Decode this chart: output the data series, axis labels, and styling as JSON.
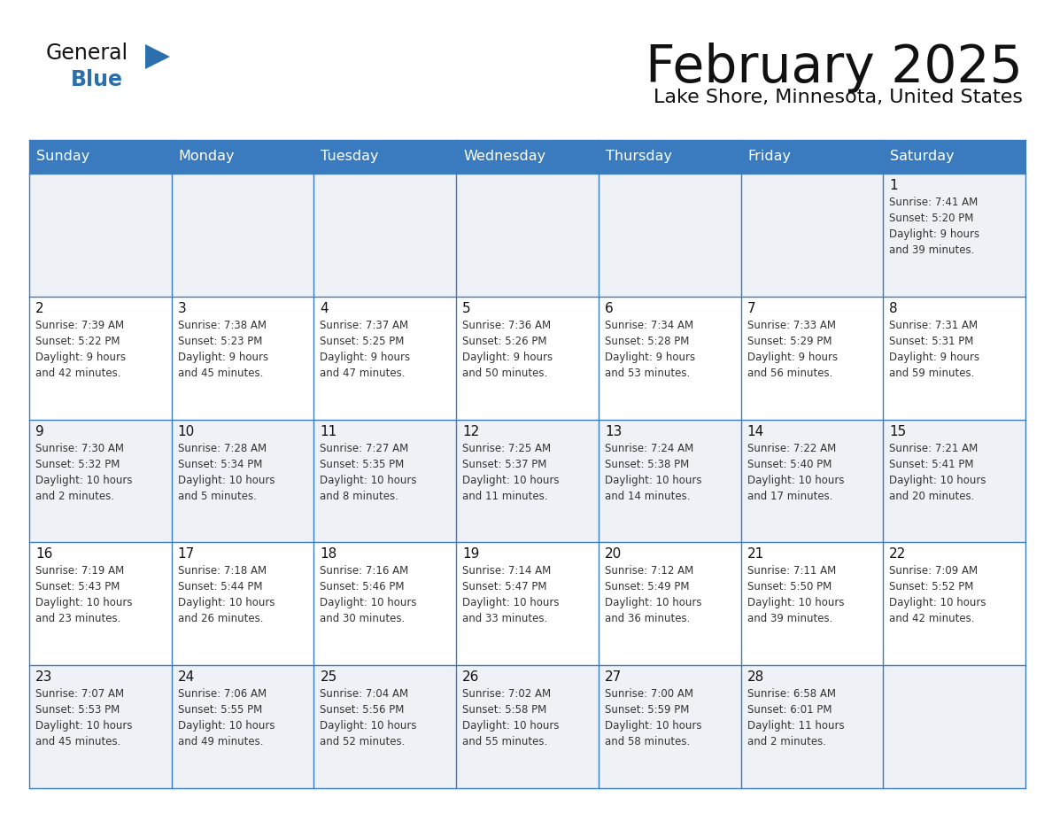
{
  "title": "February 2025",
  "subtitle": "Lake Shore, Minnesota, United States",
  "header_bg": "#3a7bbf",
  "header_text_color": "#ffffff",
  "cell_bg_alt": "#eef2f7",
  "cell_bg_white": "#ffffff",
  "border_color": "#3a7bbf",
  "day_headers": [
    "Sunday",
    "Monday",
    "Tuesday",
    "Wednesday",
    "Thursday",
    "Friday",
    "Saturday"
  ],
  "title_color": "#111111",
  "subtitle_color": "#111111",
  "cell_text_color": "#333333",
  "day_number_color": "#111111",
  "logo_text_color": "#111111",
  "logo_blue_color": "#2b6fad",
  "logo_triangle_color": "#2b6fad",
  "weeks": [
    [
      null,
      null,
      null,
      null,
      null,
      null,
      {
        "day": "1",
        "sunrise": "7:41 AM",
        "sunset": "5:20 PM",
        "daylight": "9 hours",
        "daylight2": "and 39 minutes."
      }
    ],
    [
      {
        "day": "2",
        "sunrise": "7:39 AM",
        "sunset": "5:22 PM",
        "daylight": "9 hours",
        "daylight2": "and 42 minutes."
      },
      {
        "day": "3",
        "sunrise": "7:38 AM",
        "sunset": "5:23 PM",
        "daylight": "9 hours",
        "daylight2": "and 45 minutes."
      },
      {
        "day": "4",
        "sunrise": "7:37 AM",
        "sunset": "5:25 PM",
        "daylight": "9 hours",
        "daylight2": "and 47 minutes."
      },
      {
        "day": "5",
        "sunrise": "7:36 AM",
        "sunset": "5:26 PM",
        "daylight": "9 hours",
        "daylight2": "and 50 minutes."
      },
      {
        "day": "6",
        "sunrise": "7:34 AM",
        "sunset": "5:28 PM",
        "daylight": "9 hours",
        "daylight2": "and 53 minutes."
      },
      {
        "day": "7",
        "sunrise": "7:33 AM",
        "sunset": "5:29 PM",
        "daylight": "9 hours",
        "daylight2": "and 56 minutes."
      },
      {
        "day": "8",
        "sunrise": "7:31 AM",
        "sunset": "5:31 PM",
        "daylight": "9 hours",
        "daylight2": "and 59 minutes."
      }
    ],
    [
      {
        "day": "9",
        "sunrise": "7:30 AM",
        "sunset": "5:32 PM",
        "daylight": "10 hours",
        "daylight2": "and 2 minutes."
      },
      {
        "day": "10",
        "sunrise": "7:28 AM",
        "sunset": "5:34 PM",
        "daylight": "10 hours",
        "daylight2": "and 5 minutes."
      },
      {
        "day": "11",
        "sunrise": "7:27 AM",
        "sunset": "5:35 PM",
        "daylight": "10 hours",
        "daylight2": "and 8 minutes."
      },
      {
        "day": "12",
        "sunrise": "7:25 AM",
        "sunset": "5:37 PM",
        "daylight": "10 hours",
        "daylight2": "and 11 minutes."
      },
      {
        "day": "13",
        "sunrise": "7:24 AM",
        "sunset": "5:38 PM",
        "daylight": "10 hours",
        "daylight2": "and 14 minutes."
      },
      {
        "day": "14",
        "sunrise": "7:22 AM",
        "sunset": "5:40 PM",
        "daylight": "10 hours",
        "daylight2": "and 17 minutes."
      },
      {
        "day": "15",
        "sunrise": "7:21 AM",
        "sunset": "5:41 PM",
        "daylight": "10 hours",
        "daylight2": "and 20 minutes."
      }
    ],
    [
      {
        "day": "16",
        "sunrise": "7:19 AM",
        "sunset": "5:43 PM",
        "daylight": "10 hours",
        "daylight2": "and 23 minutes."
      },
      {
        "day": "17",
        "sunrise": "7:18 AM",
        "sunset": "5:44 PM",
        "daylight": "10 hours",
        "daylight2": "and 26 minutes."
      },
      {
        "day": "18",
        "sunrise": "7:16 AM",
        "sunset": "5:46 PM",
        "daylight": "10 hours",
        "daylight2": "and 30 minutes."
      },
      {
        "day": "19",
        "sunrise": "7:14 AM",
        "sunset": "5:47 PM",
        "daylight": "10 hours",
        "daylight2": "and 33 minutes."
      },
      {
        "day": "20",
        "sunrise": "7:12 AM",
        "sunset": "5:49 PM",
        "daylight": "10 hours",
        "daylight2": "and 36 minutes."
      },
      {
        "day": "21",
        "sunrise": "7:11 AM",
        "sunset": "5:50 PM",
        "daylight": "10 hours",
        "daylight2": "and 39 minutes."
      },
      {
        "day": "22",
        "sunrise": "7:09 AM",
        "sunset": "5:52 PM",
        "daylight": "10 hours",
        "daylight2": "and 42 minutes."
      }
    ],
    [
      {
        "day": "23",
        "sunrise": "7:07 AM",
        "sunset": "5:53 PM",
        "daylight": "10 hours",
        "daylight2": "and 45 minutes."
      },
      {
        "day": "24",
        "sunrise": "7:06 AM",
        "sunset": "5:55 PM",
        "daylight": "10 hours",
        "daylight2": "and 49 minutes."
      },
      {
        "day": "25",
        "sunrise": "7:04 AM",
        "sunset": "5:56 PM",
        "daylight": "10 hours",
        "daylight2": "and 52 minutes."
      },
      {
        "day": "26",
        "sunrise": "7:02 AM",
        "sunset": "5:58 PM",
        "daylight": "10 hours",
        "daylight2": "and 55 minutes."
      },
      {
        "day": "27",
        "sunrise": "7:00 AM",
        "sunset": "5:59 PM",
        "daylight": "10 hours",
        "daylight2": "and 58 minutes."
      },
      {
        "day": "28",
        "sunrise": "6:58 AM",
        "sunset": "6:01 PM",
        "daylight": "11 hours",
        "daylight2": "and 2 minutes."
      },
      null
    ]
  ]
}
